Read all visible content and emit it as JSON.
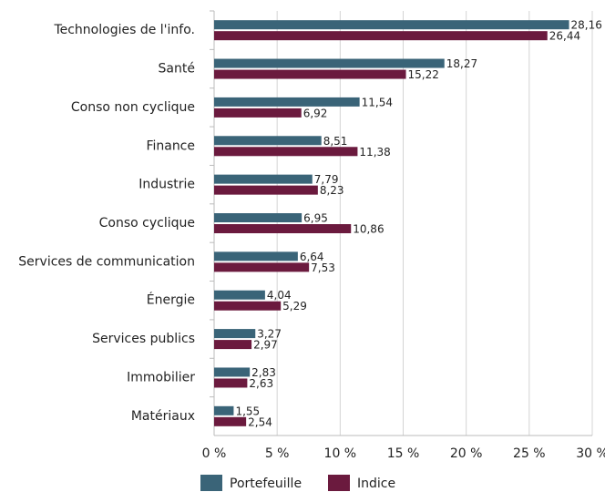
{
  "chart_data": {
    "type": "hbar",
    "categories": [
      "Technologies de l'info.",
      "Santé",
      "Conso non cyclique",
      "Finance",
      "Industrie",
      "Conso cyclique",
      "Services de communication",
      "Énergie",
      "Services publics",
      "Immobilier",
      "Matériaux"
    ],
    "series": [
      {
        "name": "Portefeuille",
        "color": "#3a6478",
        "values": [
          28.16,
          18.27,
          11.54,
          8.51,
          7.79,
          6.95,
          6.64,
          4.04,
          3.27,
          2.83,
          1.55
        ],
        "value_labels": [
          "28,16",
          "18,27",
          "11,54",
          "8,51",
          "7,79",
          "6,95",
          "6,64",
          "4,04",
          "3,27",
          "2,83",
          "1,55"
        ]
      },
      {
        "name": "Indice",
        "color": "#6b1a3e",
        "values": [
          26.44,
          15.22,
          6.92,
          11.38,
          8.23,
          10.86,
          7.53,
          5.29,
          2.97,
          2.63,
          2.54
        ],
        "value_labels": [
          "26,44",
          "15,22",
          "6,92",
          "11,38",
          "8,23",
          "10,86",
          "7,53",
          "5,29",
          "2,97",
          "2,63",
          "2,54"
        ]
      }
    ],
    "xlim": [
      0,
      30
    ],
    "xticks": [
      {
        "value": 0,
        "label": "0 %"
      },
      {
        "value": 5,
        "label": "5 %"
      },
      {
        "value": 10,
        "label": "10 %"
      },
      {
        "value": 15,
        "label": "15 %"
      },
      {
        "value": 20,
        "label": "20 %"
      },
      {
        "value": 25,
        "label": "25 %"
      },
      {
        "value": 30,
        "label": "30 %"
      }
    ],
    "grid": true,
    "legend": "bottom"
  }
}
